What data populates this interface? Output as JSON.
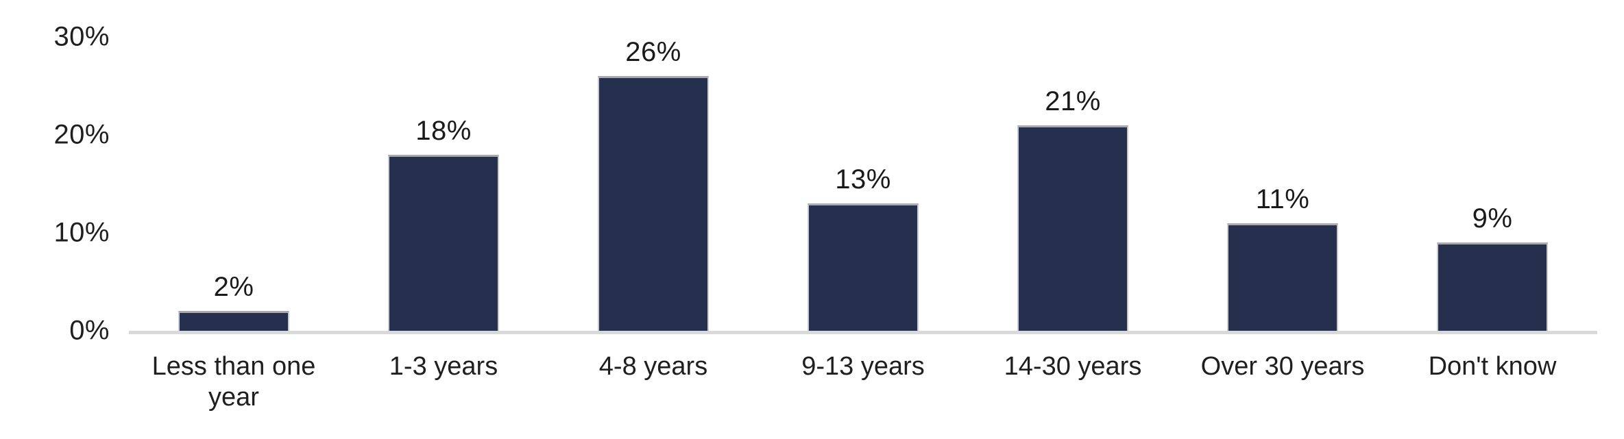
{
  "chart_data": {
    "type": "bar",
    "title": "",
    "xlabel": "",
    "ylabel": "",
    "categories": [
      "Less than one year",
      "1-3 years",
      "4-8 years",
      "9-13 years",
      "14-30 years",
      "Over 30 years",
      "Don't know"
    ],
    "values": [
      2,
      18,
      26,
      13,
      21,
      11,
      9
    ],
    "value_labels": [
      "2%",
      "18%",
      "26%",
      "13%",
      "21%",
      "11%",
      "9%"
    ],
    "ylim": [
      0,
      30
    ],
    "yticks": [
      {
        "value": 0,
        "label": "0%"
      },
      {
        "value": 10,
        "label": "10%"
      },
      {
        "value": 20,
        "label": "20%"
      },
      {
        "value": 30,
        "label": "30%"
      }
    ],
    "grid": false,
    "legend": false,
    "colors": {
      "bar_fill": "#252F4E",
      "bar_border": "#A9A9B0",
      "axis_line": "#D9D9D9",
      "text": "#1F1F1F",
      "background": "#FFFFFF"
    }
  }
}
